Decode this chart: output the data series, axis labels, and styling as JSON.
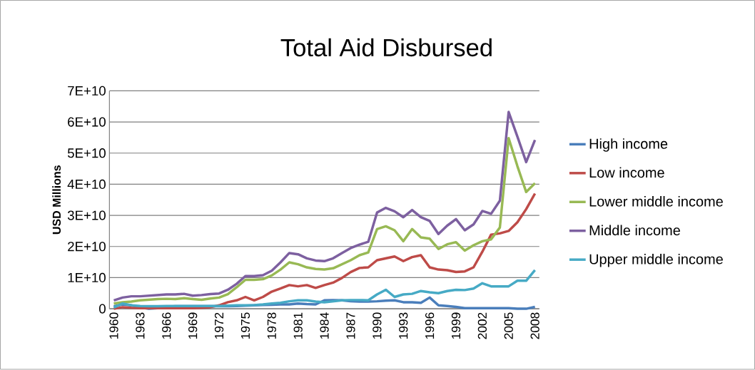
{
  "chart_data": {
    "type": "line",
    "title": "Total Aid Disbursed",
    "ylabel": "USD Millions",
    "categories": [
      "1960",
      null,
      null,
      "1963",
      null,
      null,
      "1966",
      null,
      null,
      "1969",
      null,
      null,
      "1972",
      null,
      null,
      "1975",
      null,
      null,
      "1978",
      null,
      null,
      "1981",
      null,
      null,
      "1984",
      null,
      null,
      "1987",
      null,
      null,
      "1990",
      null,
      null,
      "1993",
      null,
      null,
      "1996",
      null,
      null,
      "1999",
      null,
      null,
      "2002",
      null,
      null,
      "2005",
      null,
      null,
      "2008"
    ],
    "series": [
      {
        "name": "High income",
        "color": "#4a7ebb",
        "values": [
          800000000.0,
          1400000000.0,
          1100000000.0,
          400000000.0,
          0,
          200000000.0,
          600000000.0,
          800000000.0,
          800000000.0,
          800000000.0,
          800000000.0,
          800000000.0,
          800000000.0,
          800000000.0,
          900000000.0,
          1000000000.0,
          1100000000.0,
          1200000000.0,
          1300000000.0,
          1400000000.0,
          1400000000.0,
          1700000000.0,
          1500000000.0,
          1400000000.0,
          2700000000.0,
          2800000000.0,
          2700000000.0,
          2400000000.0,
          2300000000.0,
          2300000000.0,
          2400000000.0,
          2600000000.0,
          2700000000.0,
          2100000000.0,
          2100000000.0,
          1900000000.0,
          3600000000.0,
          1100000000.0,
          900000000.0,
          600000000.0,
          200000000.0,
          200000000.0,
          200000000.0,
          200000000.0,
          200000000.0,
          200000000.0,
          0,
          0,
          600000000.0
        ]
      },
      {
        "name": "Low income",
        "color": "#be4b48",
        "values": [
          0,
          500000000.0,
          300000000.0,
          200000000.0,
          200000000.0,
          200000000.0,
          200000000.0,
          200000000.0,
          200000000.0,
          200000000.0,
          300000000.0,
          500000000.0,
          1100000000.0,
          2100000000.0,
          2700000000.0,
          3800000000.0,
          2700000000.0,
          3800000000.0,
          5500000000.0,
          6500000000.0,
          7600000000.0,
          7200000000.0,
          7600000000.0,
          6700000000.0,
          7600000000.0,
          8400000000.0,
          9900000000.0,
          11800000000.0,
          13100000000.0,
          13300000000.0,
          15600000000.0,
          16200000000.0,
          16800000000.0,
          15300000000.0,
          16600000000.0,
          17200000000.0,
          13300000000.0,
          12600000000.0,
          12400000000.0,
          11800000000.0,
          12000000000.0,
          13300000000.0,
          18300000000.0,
          23800000000.0,
          24200000000.0,
          25000000000.0,
          27800000000.0,
          32000000000.0,
          37000000000.0
        ]
      },
      {
        "name": "Lower middle income",
        "color": "#98b954",
        "values": [
          1700000000.0,
          2100000000.0,
          2300000000.0,
          2700000000.0,
          2900000000.0,
          3100000000.0,
          3200000000.0,
          3100000000.0,
          3400000000.0,
          3100000000.0,
          2900000000.0,
          3300000000.0,
          3600000000.0,
          4700000000.0,
          6900000000.0,
          9300000000.0,
          9300000000.0,
          9500000000.0,
          10700000000.0,
          12600000000.0,
          14900000000.0,
          14300000000.0,
          13300000000.0,
          12800000000.0,
          12600000000.0,
          13000000000.0,
          14300000000.0,
          15600000000.0,
          17200000000.0,
          18100000000.0,
          25600000000.0,
          26500000000.0,
          25200000000.0,
          21700000000.0,
          25600000000.0,
          22900000000.0,
          22500000000.0,
          19200000000.0,
          20700000000.0,
          21400000000.0,
          18700000000.0,
          20400000000.0,
          21700000000.0,
          22300000000.0,
          26100000000.0,
          54800000000.0,
          45800000000.0,
          37500000000.0,
          40300000000.0
        ]
      },
      {
        "name": "Middle income",
        "color": "#7d60a0",
        "values": [
          2700000000.0,
          3600000000.0,
          4000000000.0,
          4000000000.0,
          4200000000.0,
          4400000000.0,
          4600000000.0,
          4600000000.0,
          4800000000.0,
          4200000000.0,
          4400000000.0,
          4700000000.0,
          4900000000.0,
          6100000000.0,
          8000000000.0,
          10500000000.0,
          10500000000.0,
          10800000000.0,
          12200000000.0,
          14900000000.0,
          17900000000.0,
          17500000000.0,
          16200000000.0,
          15500000000.0,
          15300000000.0,
          16200000000.0,
          17900000000.0,
          19500000000.0,
          20600000000.0,
          21500000000.0,
          30900000000.0,
          32400000000.0,
          31300000000.0,
          29400000000.0,
          31700000000.0,
          29400000000.0,
          28200000000.0,
          24000000000.0,
          26700000000.0,
          28800000000.0,
          25200000000.0,
          27100000000.0,
          31400000000.0,
          30500000000.0,
          34700000000.0,
          63200000000.0,
          55300000000.0,
          47100000000.0,
          54200000000.0
        ]
      },
      {
        "name": "Upper middle income",
        "color": "#46aac5",
        "values": [
          400000000.0,
          1700000000.0,
          1100000000.0,
          900000000.0,
          800000000.0,
          800000000.0,
          900000000.0,
          900000000.0,
          900000000.0,
          900000000.0,
          900000000.0,
          900000000.0,
          900000000.0,
          1000000000.0,
          1100000000.0,
          1100000000.0,
          1200000000.0,
          1400000000.0,
          1700000000.0,
          1900000000.0,
          2400000000.0,
          2700000000.0,
          2700000000.0,
          2300000000.0,
          2100000000.0,
          2400000000.0,
          2700000000.0,
          2800000000.0,
          2800000000.0,
          2700000000.0,
          4600000000.0,
          6100000000.0,
          3800000000.0,
          4600000000.0,
          4800000000.0,
          5700000000.0,
          5300000000.0,
          5000000000.0,
          5700000000.0,
          6100000000.0,
          6000000000.0,
          6500000000.0,
          8200000000.0,
          7200000000.0,
          7200000000.0,
          7200000000.0,
          9000000000.0,
          9000000000.0,
          12400000000.0
        ]
      }
    ],
    "ylim": [
      0,
      70000000000.0
    ],
    "yticks": [
      0,
      {
        "value": 10000000000.0,
        "label": "1E+10"
      },
      {
        "value": 20000000000.0,
        "label": "2E+10"
      },
      {
        "value": 30000000000.0,
        "label": "3E+10"
      },
      {
        "value": 40000000000.0,
        "label": "4E+10"
      },
      {
        "value": 50000000000.0,
        "label": "5E+10"
      },
      {
        "value": 60000000000.0,
        "label": "6E+10"
      },
      {
        "value": 70000000000.0,
        "label": "7E+10"
      }
    ],
    "grid": "y",
    "legend": "right"
  }
}
